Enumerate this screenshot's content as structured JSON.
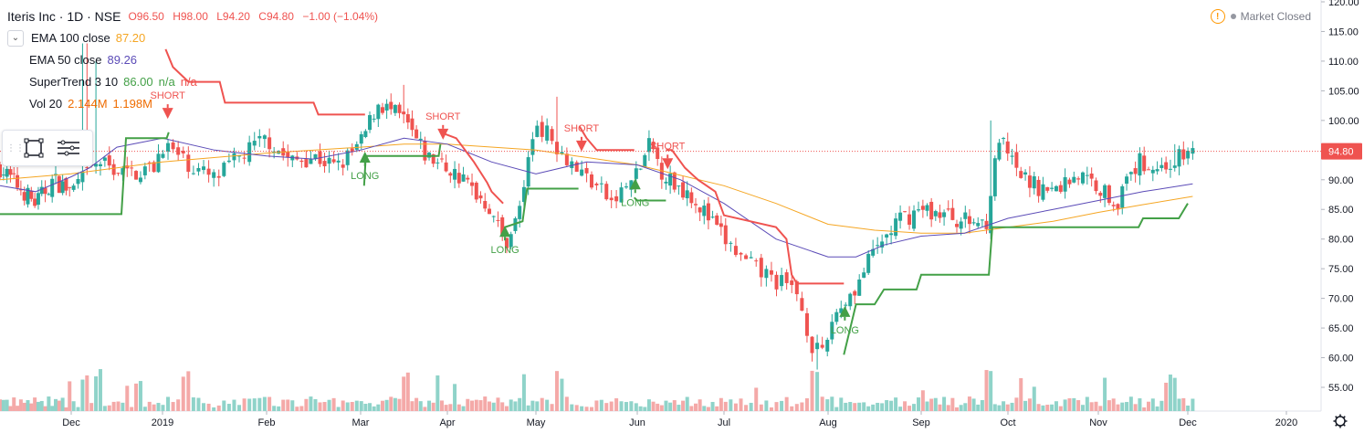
{
  "header": {
    "symbol": "Iteris Inc · 1D · NSE",
    "open": "O96.50",
    "high": "H98.00",
    "low": "L94.20",
    "close": "C94.80",
    "change": "−1.00 (−1.04%)"
  },
  "legend": {
    "ema100": {
      "label": "EMA 100 close",
      "value": "87.20",
      "color": "#f5a623"
    },
    "ema50": {
      "label": "EMA 50 close",
      "value": "89.26",
      "color": "#5b4bb7"
    },
    "supertrend": {
      "label": "SuperTrend 3 10",
      "value": "86.00",
      "na1": "n/a",
      "na2": "n/a",
      "color": "#43a047"
    },
    "vol": {
      "label": "Vol 20",
      "value1": "2.144M",
      "value2": "1.198M",
      "color": "#ef6c00"
    }
  },
  "market_status": "Market Closed",
  "price_label": "94.80",
  "chart_data": {
    "type": "candlestick",
    "y_axis": {
      "min": 53,
      "max": 120,
      "ticks": [
        55,
        60,
        65,
        70,
        75,
        80,
        85,
        90,
        95,
        100,
        105,
        110,
        115,
        120
      ]
    },
    "x_axis": {
      "labels": [
        "Dec",
        "2019",
        "Feb",
        "Mar",
        "Apr",
        "May",
        "Jun",
        "Jul",
        "Aug",
        "Sep",
        "Oct",
        "Nov",
        "Dec",
        "2020"
      ]
    },
    "last_price": 94.8,
    "colors": {
      "up": "#26a69a",
      "down": "#ef5350",
      "upVol": "#8fd3c9",
      "downVol": "#f4a9a8",
      "stUp": "#43a047",
      "stDown": "#ef5350",
      "ema100": "#f5a623",
      "ema50": "#5b4bb7"
    },
    "signals": [
      {
        "type": "SHORT",
        "month": 2.05,
        "price": 101.5
      },
      {
        "type": "LONG",
        "month": 4.05,
        "price": 93.5
      },
      {
        "type": "SHORT",
        "month": 4.95,
        "price": 98.0
      },
      {
        "type": "LONG",
        "month": 5.65,
        "price": 81.0
      },
      {
        "type": "SHORT",
        "month": 6.45,
        "price": 96.0
      },
      {
        "type": "LONG",
        "month": 6.98,
        "price": 89.0
      },
      {
        "type": "SHORT",
        "month": 7.35,
        "price": 93.0
      },
      {
        "type": "LONG",
        "month": 9.18,
        "price": 67.5
      }
    ],
    "anchors": [
      [
        0,
        92
      ],
      [
        0.25,
        89
      ],
      [
        0.5,
        86
      ],
      [
        0.75,
        90
      ],
      [
        1.0,
        88
      ],
      [
        1.3,
        93
      ],
      [
        1.6,
        91
      ],
      [
        1.9,
        92
      ],
      [
        2.0,
        96
      ],
      [
        2.3,
        92
      ],
      [
        2.5,
        90
      ],
      [
        2.75,
        94
      ],
      [
        3.0,
        97
      ],
      [
        3.25,
        93
      ],
      [
        3.5,
        94
      ],
      [
        3.75,
        92
      ],
      [
        4.0,
        96
      ],
      [
        4.2,
        103
      ],
      [
        4.5,
        100
      ],
      [
        4.75,
        94
      ],
      [
        5.0,
        92
      ],
      [
        5.25,
        89
      ],
      [
        5.5,
        85
      ],
      [
        5.65,
        79
      ],
      [
        5.8,
        84
      ],
      [
        6.0,
        100
      ],
      [
        6.2,
        96
      ],
      [
        6.4,
        92
      ],
      [
        6.6,
        89
      ],
      [
        6.75,
        86
      ],
      [
        7.0,
        91
      ],
      [
        7.15,
        96
      ],
      [
        7.3,
        91
      ],
      [
        7.45,
        89
      ],
      [
        7.6,
        88
      ],
      [
        7.8,
        84
      ],
      [
        8.0,
        80
      ],
      [
        8.2,
        76
      ],
      [
        8.5,
        73
      ],
      [
        8.7,
        71
      ],
      [
        8.85,
        62
      ],
      [
        8.95,
        60
      ],
      [
        9.05,
        67
      ],
      [
        9.3,
        72
      ],
      [
        9.5,
        78
      ],
      [
        9.75,
        83
      ],
      [
        10.0,
        85
      ],
      [
        10.3,
        84
      ],
      [
        10.5,
        83
      ],
      [
        10.75,
        83
      ],
      [
        10.9,
        97
      ],
      [
        11.1,
        91
      ],
      [
        11.3,
        89
      ],
      [
        11.5,
        88
      ],
      [
        11.75,
        91
      ],
      [
        12.0,
        89
      ],
      [
        12.2,
        86
      ],
      [
        12.45,
        93
      ],
      [
        12.7,
        92
      ],
      [
        12.95,
        94
      ],
      [
        13.05,
        94.8
      ]
    ],
    "spikes": [
      [
        1.15,
        113
      ],
      [
        1.28,
        110
      ],
      [
        4.5,
        106
      ],
      [
        6.22,
        104
      ],
      [
        8.88,
        58
      ],
      [
        10.8,
        100
      ],
      [
        12.85,
        96
      ]
    ],
    "ema100": [
      [
        0,
        90
      ],
      [
        1,
        91
      ],
      [
        2,
        93
      ],
      [
        3,
        94.5
      ],
      [
        4,
        95.5
      ],
      [
        4.5,
        96
      ],
      [
        5,
        96
      ],
      [
        6,
        95
      ],
      [
        7,
        92.5
      ],
      [
        8,
        89
      ],
      [
        8.5,
        86
      ],
      [
        9,
        82.5
      ],
      [
        9.5,
        81.5
      ],
      [
        10,
        81
      ],
      [
        10.5,
        81
      ],
      [
        11,
        82
      ],
      [
        11.5,
        83
      ],
      [
        12,
        84.5
      ],
      [
        12.5,
        85.8
      ],
      [
        13.05,
        87.2
      ]
    ],
    "ema50": [
      [
        0,
        89
      ],
      [
        0.5,
        88
      ],
      [
        1,
        90.5
      ],
      [
        1.2,
        92
      ],
      [
        1.5,
        95.5
      ],
      [
        2,
        97
      ],
      [
        2.5,
        95
      ],
      [
        3,
        94
      ],
      [
        3.5,
        93.5
      ],
      [
        4,
        95
      ],
      [
        4.5,
        97
      ],
      [
        5,
        96
      ],
      [
        5.5,
        93
      ],
      [
        6,
        91
      ],
      [
        6.5,
        93
      ],
      [
        7,
        92.5
      ],
      [
        7.5,
        90
      ],
      [
        8,
        86
      ],
      [
        8.5,
        80
      ],
      [
        9.0,
        77
      ],
      [
        9.3,
        77
      ],
      [
        9.6,
        79
      ],
      [
        10,
        80.5
      ],
      [
        10.5,
        81
      ],
      [
        11,
        83.5
      ],
      [
        11.5,
        85
      ],
      [
        12,
        86.5
      ],
      [
        12.5,
        88
      ],
      [
        13.05,
        89.3
      ]
    ],
    "supertrend_up": [
      [
        [
          0,
          84.2
        ],
        [
          1.55,
          84.2
        ],
        [
          1.6,
          97
        ],
        [
          2.04,
          97
        ],
        [
          2.06,
          98
        ]
      ],
      [
        [
          4.04,
          89
        ],
        [
          4.06,
          94
        ],
        [
          4.9,
          94
        ],
        [
          4.92,
          96
        ]
      ],
      [
        [
          5.63,
          80.5
        ],
        [
          5.65,
          82
        ],
        [
          5.85,
          83
        ],
        [
          5.9,
          88.5
        ],
        [
          6.42,
          88.5
        ]
      ],
      [
        [
          6.97,
          87
        ],
        [
          7.0,
          86.5
        ],
        [
          7.33,
          86.5
        ]
      ],
      [
        [
          9.17,
          60.5
        ],
        [
          9.3,
          69
        ],
        [
          9.5,
          69
        ],
        [
          9.6,
          71.5
        ],
        [
          9.95,
          71.5
        ],
        [
          10.0,
          74
        ],
        [
          10.78,
          74
        ],
        [
          10.82,
          82
        ],
        [
          12.45,
          82
        ],
        [
          12.5,
          83.5
        ],
        [
          12.9,
          83.5
        ],
        [
          13.0,
          86
        ]
      ]
    ],
    "supertrend_down": [
      [
        [
          2.03,
          112
        ],
        [
          2.1,
          109
        ],
        [
          2.25,
          106.5
        ],
        [
          2.55,
          106.5
        ],
        [
          2.6,
          103
        ],
        [
          3.5,
          103
        ],
        [
          3.55,
          101
        ],
        [
          4.05,
          101
        ]
      ],
      [
        [
          4.92,
          98
        ],
        [
          5.1,
          97
        ],
        [
          5.3,
          93
        ],
        [
          5.45,
          89.5
        ],
        [
          5.5,
          88
        ],
        [
          5.63,
          86
        ]
      ],
      [
        [
          6.43,
          99
        ],
        [
          6.5,
          97
        ],
        [
          6.6,
          95
        ],
        [
          6.97,
          95
        ]
      ],
      [
        [
          7.33,
          95
        ],
        [
          7.4,
          95
        ],
        [
          7.55,
          92
        ],
        [
          7.7,
          90
        ],
        [
          7.9,
          88
        ],
        [
          8.0,
          84
        ],
        [
          8.5,
          82
        ],
        [
          8.6,
          80
        ],
        [
          8.65,
          74
        ],
        [
          8.7,
          72.5
        ],
        [
          9.17,
          72.5
        ]
      ]
    ]
  }
}
